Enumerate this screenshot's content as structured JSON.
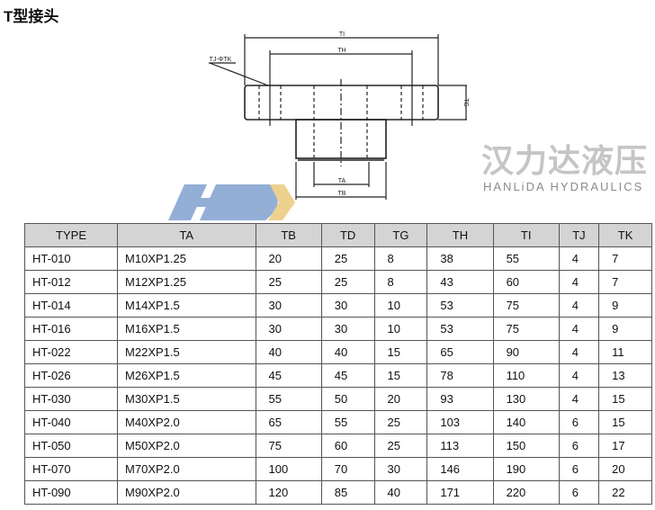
{
  "title": "T型接头",
  "drawing": {
    "labels": {
      "ti": "TI",
      "th": "TH",
      "tj_tk": "TJ-ΦTK",
      "tg": "TG",
      "ta": "TA",
      "tb": "TB"
    }
  },
  "watermark": {
    "cn": "汉力达液压",
    "en": "HANLiDA HYDRAULICS",
    "logo": "HD",
    "colors": {
      "blue": "#6f95c9",
      "gold": "#e8c26a"
    }
  },
  "table": {
    "headers": [
      "TYPE",
      "TA",
      "TB",
      "TD",
      "TG",
      "TH",
      "TI",
      "TJ",
      "TK"
    ],
    "rows": [
      [
        "HT-010",
        "M10XP1.25",
        "20",
        "25",
        "8",
        "38",
        "55",
        "4",
        "7"
      ],
      [
        "HT-012",
        "M12XP1.25",
        "25",
        "25",
        "8",
        "43",
        "60",
        "4",
        "7"
      ],
      [
        "HT-014",
        "M14XP1.5",
        "30",
        "30",
        "10",
        "53",
        "75",
        "4",
        "9"
      ],
      [
        "HT-016",
        "M16XP1.5",
        "30",
        "30",
        "10",
        "53",
        "75",
        "4",
        "9"
      ],
      [
        "HT-022",
        "M22XP1.5",
        "40",
        "40",
        "15",
        "65",
        "90",
        "4",
        "11"
      ],
      [
        "HT-026",
        "M26XP1.5",
        "45",
        "45",
        "15",
        "78",
        "110",
        "4",
        "13"
      ],
      [
        "HT-030",
        "M30XP1.5",
        "55",
        "50",
        "20",
        "93",
        "130",
        "4",
        "15"
      ],
      [
        "HT-040",
        "M40XP2.0",
        "65",
        "55",
        "25",
        "103",
        "140",
        "6",
        "15"
      ],
      [
        "HT-050",
        "M50XP2.0",
        "75",
        "60",
        "25",
        "113",
        "150",
        "6",
        "17"
      ],
      [
        "HT-070",
        "M70XP2.0",
        "100",
        "70",
        "30",
        "146",
        "190",
        "6",
        "20"
      ],
      [
        "HT-090",
        "M90XP2.0",
        "120",
        "85",
        "40",
        "171",
        "220",
        "6",
        "22"
      ]
    ]
  }
}
